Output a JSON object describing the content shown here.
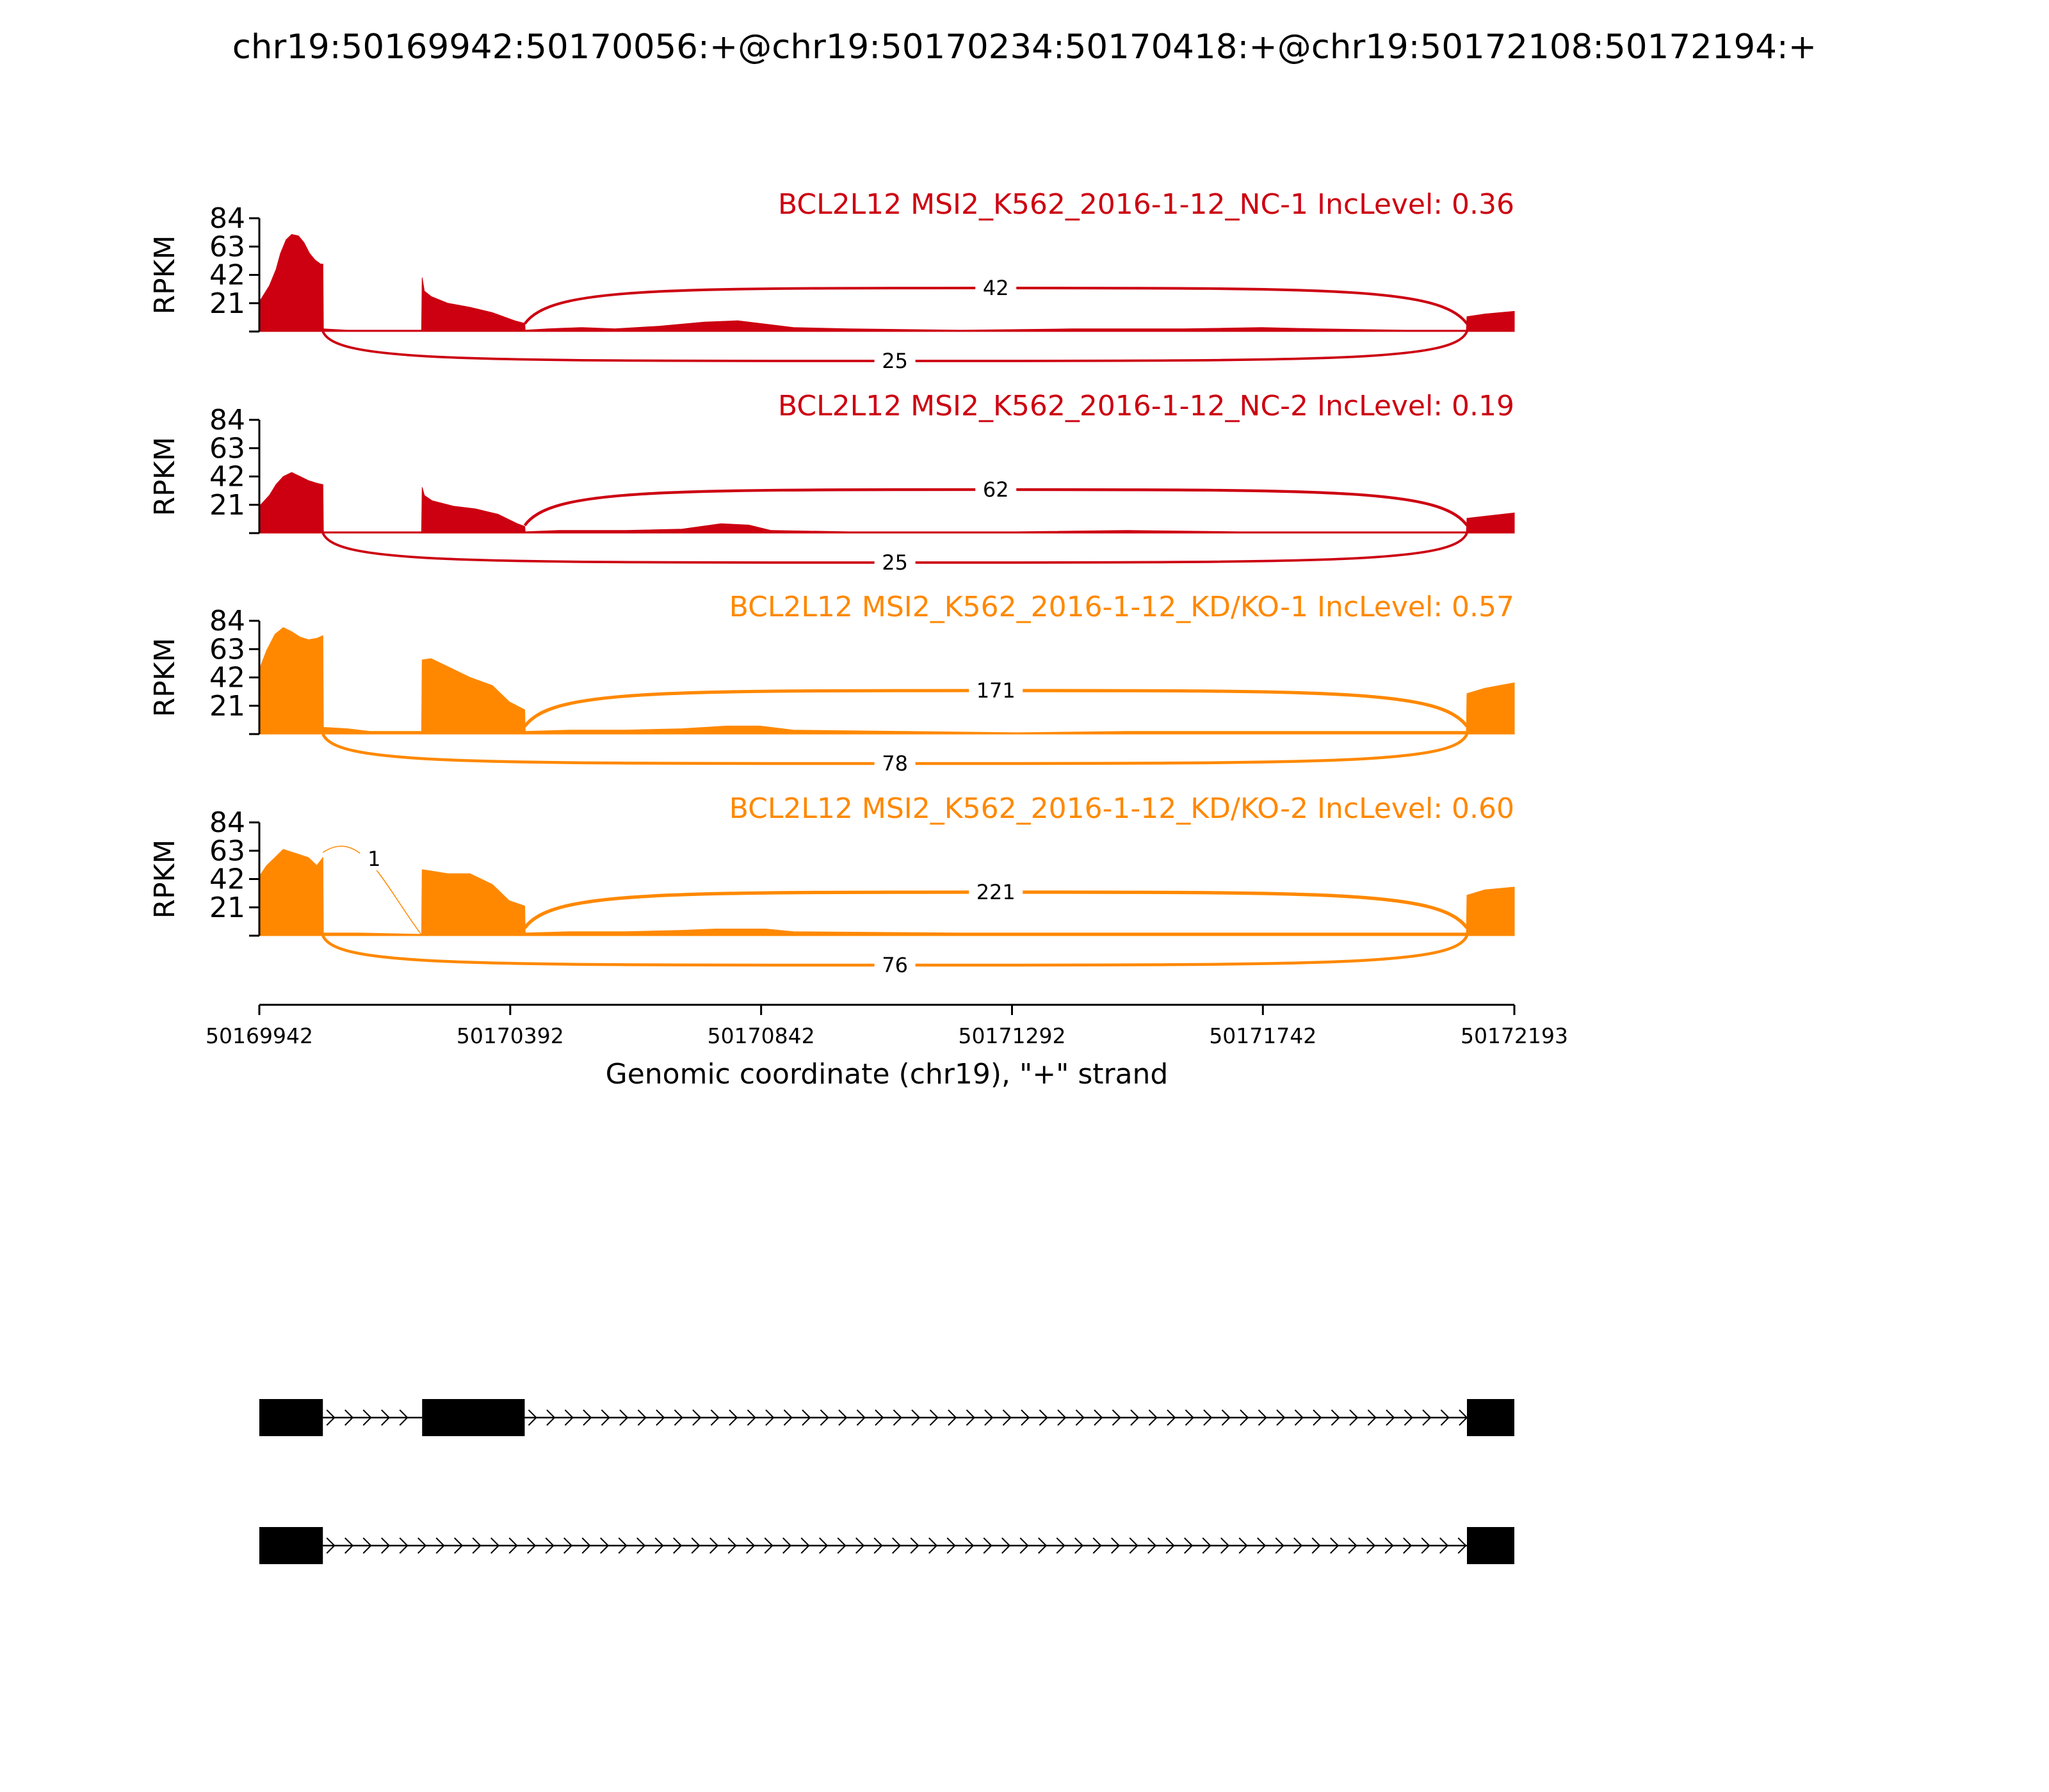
{
  "title": "chr19:50169942:50170056:+@chr19:50170234:50170418:+@chr19:50172108:50172194:+",
  "colors": {
    "nc": "#cc0011",
    "kd": "#ff8800",
    "axis": "#000000",
    "gene": "#000000"
  },
  "chart_data": {
    "type": "area",
    "chart_kind": "sashimi",
    "xlabel": "Genomic coordinate (chr19), \"+\" strand",
    "xlim": [
      50169942,
      50172193
    ],
    "xticks": [
      "50169942",
      "50170392",
      "50170842",
      "50171292",
      "50171742",
      "50172193"
    ],
    "ylabel": "RPKM",
    "ylim": [
      0,
      84
    ],
    "yticks": [
      "21",
      "42",
      "63",
      "84"
    ],
    "exons": [
      {
        "start": 50169942,
        "end": 50170056
      },
      {
        "start": 50170234,
        "end": 50170418
      },
      {
        "start": 50172108,
        "end": 50172194
      }
    ],
    "samples": [
      {
        "label": "BCL2L12 MSI2_K562_2016-1-12_NC-1 IncLevel: 0.36",
        "color": "#cc0011",
        "coverage": [
          [
            50169942,
            22
          ],
          [
            50169960,
            34
          ],
          [
            50169972,
            46
          ],
          [
            50169980,
            58
          ],
          [
            50169990,
            68
          ],
          [
            50170000,
            72
          ],
          [
            50170012,
            71
          ],
          [
            50170022,
            66
          ],
          [
            50170032,
            58
          ],
          [
            50170042,
            53
          ],
          [
            50170052,
            50
          ],
          [
            50170056,
            50
          ],
          [
            50170057,
            2
          ],
          [
            50170100,
            1
          ],
          [
            50170180,
            1
          ],
          [
            50170233,
            1
          ],
          [
            50170234,
            40
          ],
          [
            50170238,
            30
          ],
          [
            50170250,
            26
          ],
          [
            50170280,
            21
          ],
          [
            50170320,
            18
          ],
          [
            50170360,
            14
          ],
          [
            50170400,
            8
          ],
          [
            50170418,
            6
          ],
          [
            50170419,
            1
          ],
          [
            50170460,
            2
          ],
          [
            50170520,
            3
          ],
          [
            50170580,
            2
          ],
          [
            50170660,
            4
          ],
          [
            50170740,
            7
          ],
          [
            50170800,
            8
          ],
          [
            50170840,
            6
          ],
          [
            50170900,
            3
          ],
          [
            50171000,
            2
          ],
          [
            50171200,
            1
          ],
          [
            50171400,
            2
          ],
          [
            50171600,
            2
          ],
          [
            50171740,
            3
          ],
          [
            50171840,
            2
          ],
          [
            50172000,
            1
          ],
          [
            50172107,
            1
          ],
          [
            50172108,
            11
          ],
          [
            50172140,
            13
          ],
          [
            50172193,
            15
          ]
        ],
        "junctions": [
          {
            "from": 50170418,
            "to": 50172108,
            "count": "42",
            "side": "above"
          },
          {
            "from": 50170056,
            "to": 50172108,
            "count": "25",
            "side": "below"
          }
        ]
      },
      {
        "label": "BCL2L12 MSI2_K562_2016-1-12_NC-2 IncLevel: 0.19",
        "color": "#cc0011",
        "coverage": [
          [
            50169942,
            20
          ],
          [
            50169960,
            28
          ],
          [
            50169972,
            36
          ],
          [
            50169985,
            42
          ],
          [
            50170000,
            45
          ],
          [
            50170015,
            42
          ],
          [
            50170030,
            39
          ],
          [
            50170045,
            37
          ],
          [
            50170056,
            36
          ],
          [
            50170057,
            1
          ],
          [
            50170120,
            1
          ],
          [
            50170233,
            1
          ],
          [
            50170234,
            34
          ],
          [
            50170238,
            28
          ],
          [
            50170252,
            24
          ],
          [
            50170290,
            20
          ],
          [
            50170330,
            18
          ],
          [
            50170370,
            14
          ],
          [
            50170405,
            7
          ],
          [
            50170418,
            5
          ],
          [
            50170419,
            1
          ],
          [
            50170480,
            2
          ],
          [
            50170600,
            2
          ],
          [
            50170700,
            3
          ],
          [
            50170770,
            7
          ],
          [
            50170820,
            6
          ],
          [
            50170860,
            2
          ],
          [
            50171000,
            1
          ],
          [
            50171300,
            1
          ],
          [
            50171500,
            2
          ],
          [
            50171700,
            1
          ],
          [
            50171900,
            1
          ],
          [
            50172107,
            1
          ],
          [
            50172108,
            11
          ],
          [
            50172150,
            13
          ],
          [
            50172193,
            15
          ]
        ],
        "junctions": [
          {
            "from": 50170418,
            "to": 50172108,
            "count": "62",
            "side": "above"
          },
          {
            "from": 50170056,
            "to": 50172108,
            "count": "25",
            "side": "below"
          }
        ]
      },
      {
        "label": "BCL2L12 MSI2_K562_2016-1-12_KD/KO-1 IncLevel: 0.57",
        "color": "#ff8800",
        "coverage": [
          [
            50169942,
            48
          ],
          [
            50169955,
            62
          ],
          [
            50169970,
            74
          ],
          [
            50169985,
            79
          ],
          [
            50170000,
            76
          ],
          [
            50170015,
            72
          ],
          [
            50170030,
            70
          ],
          [
            50170045,
            71
          ],
          [
            50170056,
            73
          ],
          [
            50170057,
            5
          ],
          [
            50170100,
            4
          ],
          [
            50170140,
            2
          ],
          [
            50170233,
            2
          ],
          [
            50170234,
            55
          ],
          [
            50170250,
            56
          ],
          [
            50170280,
            50
          ],
          [
            50170320,
            42
          ],
          [
            50170360,
            36
          ],
          [
            50170390,
            24
          ],
          [
            50170418,
            18
          ],
          [
            50170419,
            2
          ],
          [
            50170500,
            3
          ],
          [
            50170600,
            3
          ],
          [
            50170700,
            4
          ],
          [
            50170780,
            6
          ],
          [
            50170840,
            6
          ],
          [
            50170900,
            3
          ],
          [
            50171100,
            2
          ],
          [
            50171300,
            1
          ],
          [
            50171500,
            2
          ],
          [
            50171700,
            2
          ],
          [
            50171900,
            2
          ],
          [
            50172107,
            2
          ],
          [
            50172108,
            30
          ],
          [
            50172140,
            34
          ],
          [
            50172193,
            38
          ]
        ],
        "junctions": [
          {
            "from": 50170418,
            "to": 50172108,
            "count": "171",
            "side": "above"
          },
          {
            "from": 50170056,
            "to": 50172108,
            "count": "78",
            "side": "below"
          }
        ]
      },
      {
        "label": "BCL2L12 MSI2_K562_2016-1-12_KD/KO-2 IncLevel: 0.60",
        "color": "#ff8800",
        "coverage": [
          [
            50169942,
            44
          ],
          [
            50169955,
            52
          ],
          [
            50169970,
            58
          ],
          [
            50169985,
            64
          ],
          [
            50170000,
            62
          ],
          [
            50170015,
            60
          ],
          [
            50170030,
            58
          ],
          [
            50170045,
            52
          ],
          [
            50170056,
            58
          ],
          [
            50170057,
            2
          ],
          [
            50170120,
            2
          ],
          [
            50170233,
            1
          ],
          [
            50170234,
            49
          ],
          [
            50170250,
            48
          ],
          [
            50170280,
            46
          ],
          [
            50170320,
            46
          ],
          [
            50170360,
            38
          ],
          [
            50170390,
            26
          ],
          [
            50170418,
            22
          ],
          [
            50170419,
            2
          ],
          [
            50170500,
            3
          ],
          [
            50170600,
            3
          ],
          [
            50170700,
            4
          ],
          [
            50170760,
            5
          ],
          [
            50170850,
            5
          ],
          [
            50170900,
            3
          ],
          [
            50171200,
            2
          ],
          [
            50171500,
            2
          ],
          [
            50171700,
            2
          ],
          [
            50171900,
            2
          ],
          [
            50172107,
            2
          ],
          [
            50172108,
            30
          ],
          [
            50172140,
            34
          ],
          [
            50172193,
            36
          ]
        ],
        "junctions": [
          {
            "from": 50170418,
            "to": 50172108,
            "count": "221",
            "side": "above"
          },
          {
            "from": 50170056,
            "to": 50172108,
            "count": "76",
            "side": "below"
          },
          {
            "from": 50170056,
            "to": 50170234,
            "count": "1",
            "side": "above"
          }
        ]
      }
    ],
    "transcripts": [
      {
        "exons": [
          [
            50169942,
            50170056
          ],
          [
            50170234,
            50170418
          ],
          [
            50172108,
            50172194
          ]
        ]
      },
      {
        "exons": [
          [
            50169942,
            50170056
          ],
          [
            50172108,
            50172194
          ]
        ]
      }
    ]
  }
}
